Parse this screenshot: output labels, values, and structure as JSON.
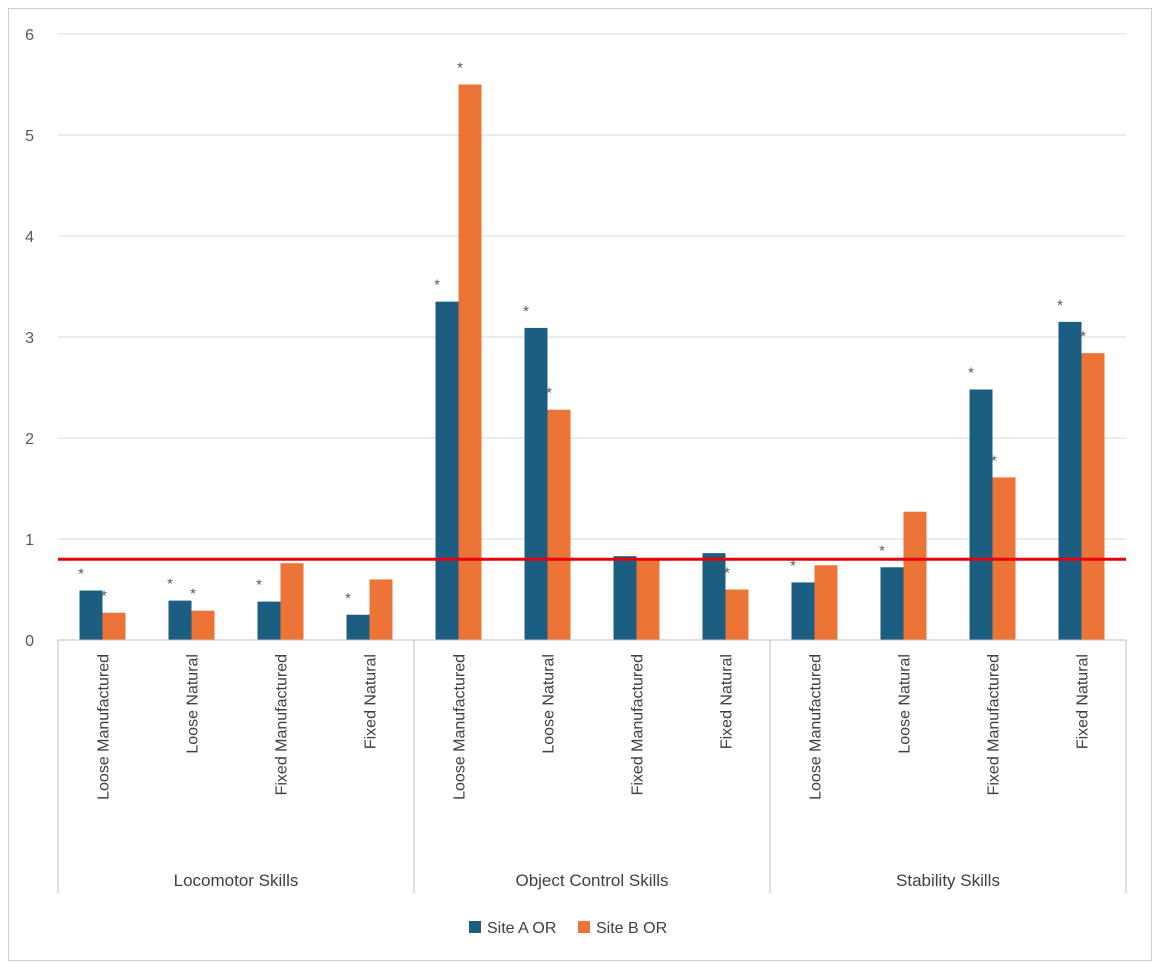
{
  "chart_data": {
    "type": "bar",
    "title": "",
    "xlabel": "",
    "ylabel": "",
    "ylim": [
      0,
      6
    ],
    "yticks": [
      0,
      1,
      2,
      3,
      4,
      5,
      6
    ],
    "grid": true,
    "legend_position": "bottom",
    "reference_line": {
      "value": 0.8,
      "color": "#e8000b"
    },
    "groups": [
      {
        "label": "Locomotor Skills",
        "categories": [
          "Loose Manufactured",
          "Loose Natural",
          "Fixed Manufactured",
          "Fixed Natural"
        ]
      },
      {
        "label": "Object Control Skills",
        "categories": [
          "Loose Manufactured",
          "Loose Natural",
          "Fixed Manufactured",
          "Fixed Natural"
        ]
      },
      {
        "label": "Stability Skills",
        "categories": [
          "Loose Manufactured",
          "Loose Natural",
          "Fixed Manufactured",
          "Fixed Natural"
        ]
      }
    ],
    "series": [
      {
        "name": "Site A OR",
        "color": "#1b5e82",
        "values": [
          0.49,
          0.39,
          0.38,
          0.25,
          3.35,
          3.09,
          0.83,
          0.86,
          0.57,
          0.72,
          2.48,
          3.15
        ],
        "significant": [
          true,
          true,
          true,
          true,
          true,
          true,
          false,
          false,
          true,
          true,
          true,
          true
        ]
      },
      {
        "name": "Site B OR",
        "color": "#ec7436",
        "values": [
          0.27,
          0.29,
          0.76,
          0.6,
          5.5,
          2.28,
          0.8,
          0.5,
          0.74,
          1.27,
          1.61,
          2.84
        ],
        "significant": [
          true,
          true,
          false,
          false,
          true,
          true,
          false,
          true,
          false,
          false,
          true,
          true
        ]
      }
    ],
    "significance_marker": "*"
  }
}
